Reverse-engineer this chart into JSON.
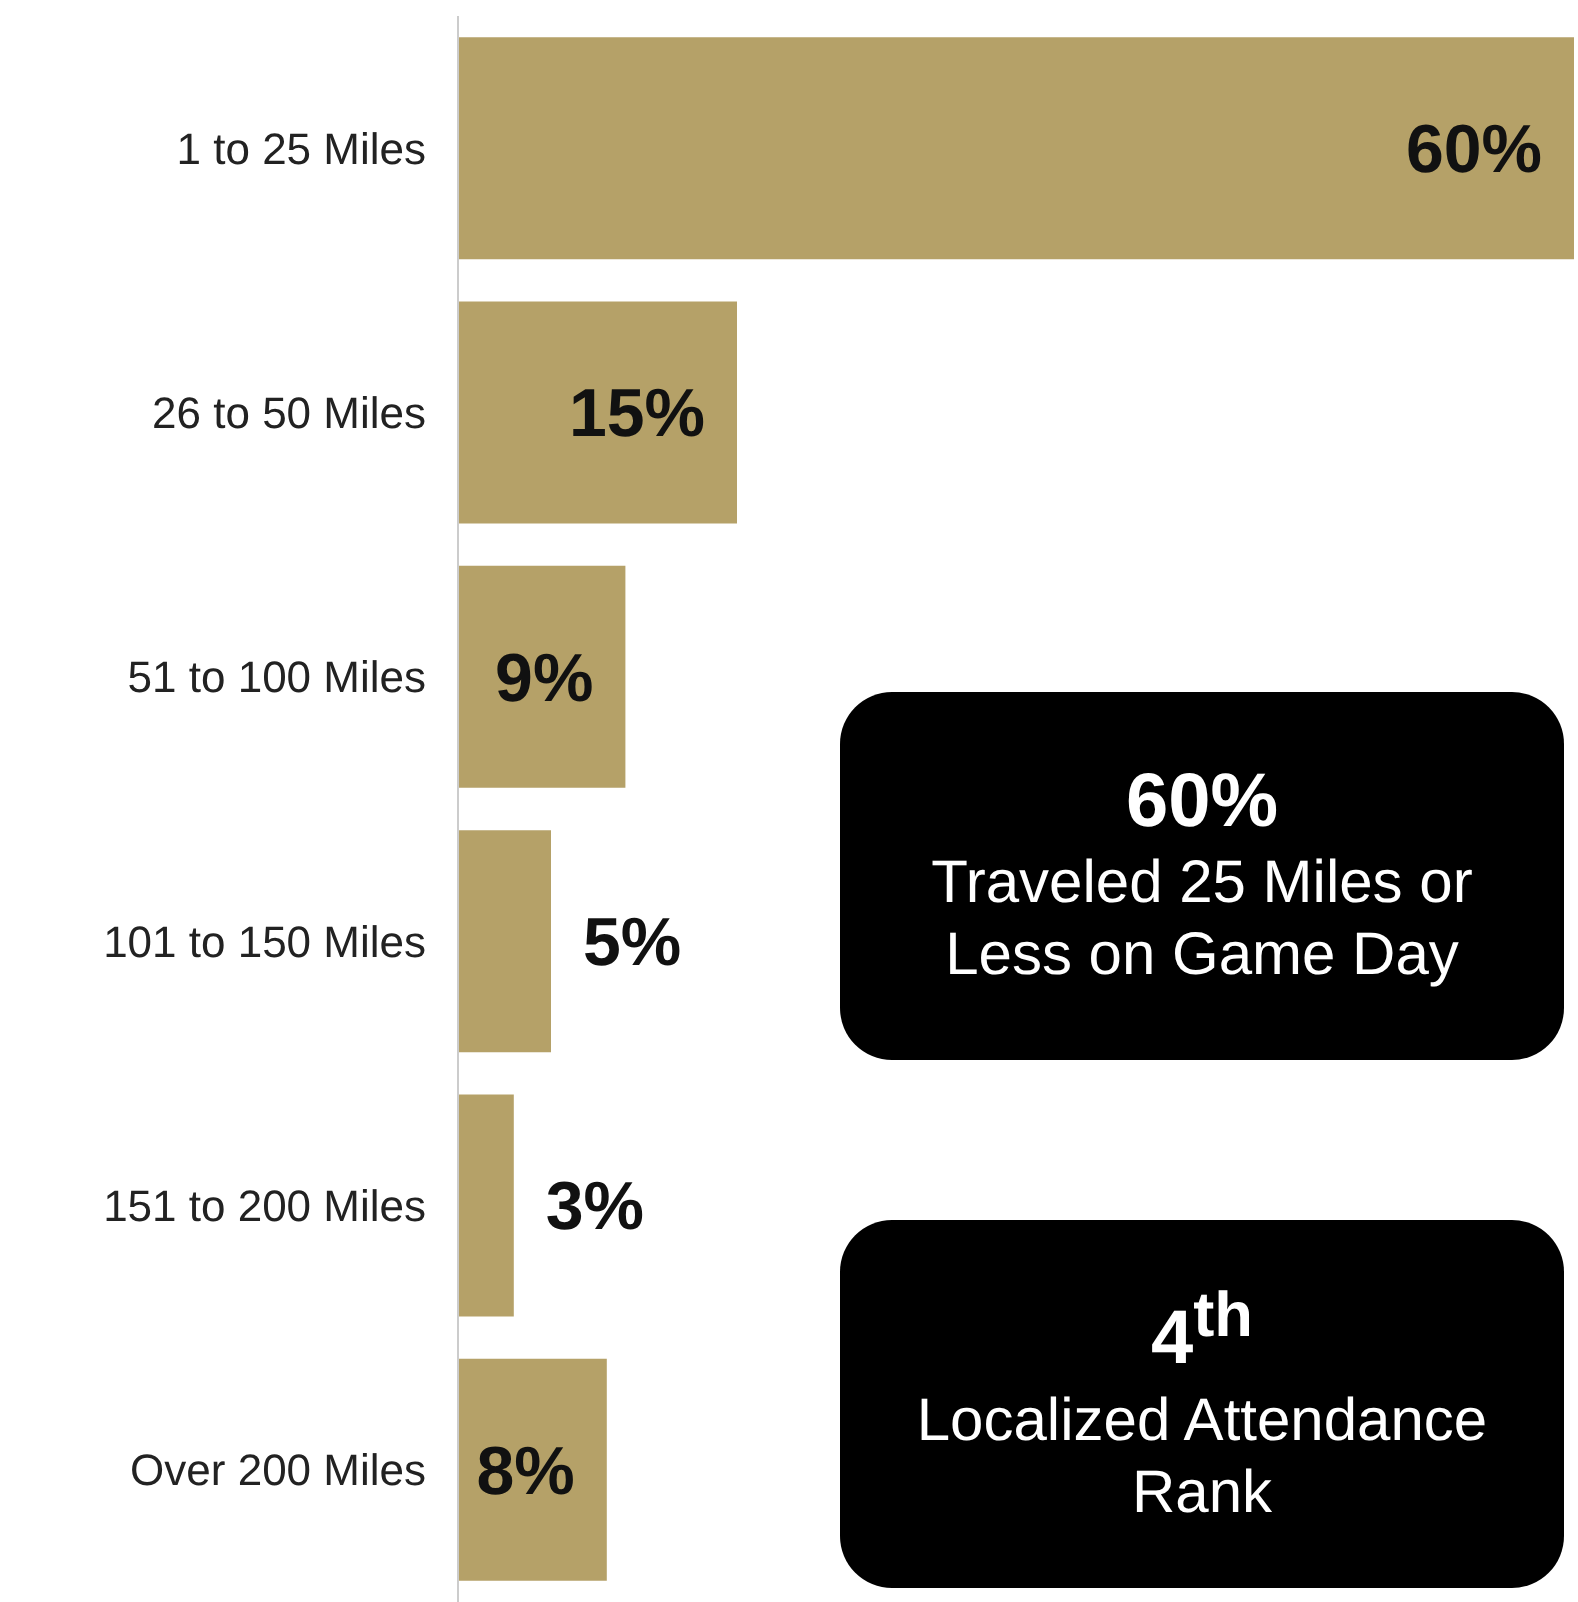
{
  "chart_data": {
    "type": "bar",
    "orientation": "horizontal",
    "categories": [
      "1 to 25 Miles",
      "26 to 50 Miles",
      "51 to 100 Miles",
      "101 to 150 Miles",
      "151 to 200 Miles",
      "Over 200 Miles"
    ],
    "values": [
      60,
      15,
      9,
      5,
      3,
      8
    ],
    "value_labels": [
      "60%",
      "15%",
      "9%",
      "5%",
      "3%",
      "8%"
    ],
    "color": "#b5a168",
    "grid": false,
    "legend": false,
    "annotations": [
      "60%",
      "Traveled 25 Miles or Less on Game Day",
      "4$^{th}$",
      "Localized Attendance Rank"
    ]
  }
}
